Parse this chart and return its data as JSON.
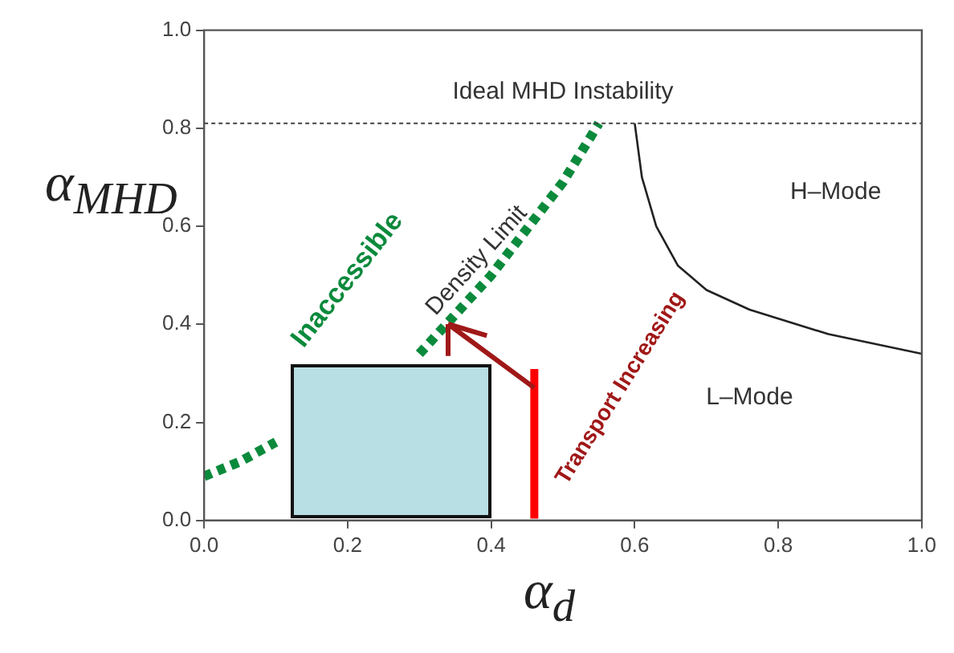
{
  "chart_data": {
    "type": "line",
    "xlabel": "α$_{d}$",
    "ylabel": "α$_{MHD}$",
    "xlim": [
      0,
      1
    ],
    "ylim": [
      0,
      1
    ],
    "xticks": [
      {
        "value": 0,
        "label": "0.0"
      },
      {
        "value": 0.2,
        "label": "0.2"
      },
      {
        "value": 0.4,
        "label": "0.4"
      },
      {
        "value": 0.6,
        "label": "0.6"
      },
      {
        "value": 0.8,
        "label": "0.8"
      },
      {
        "value": 1,
        "label": "1.0"
      }
    ],
    "yticks": [
      {
        "value": 0,
        "label": "0.0"
      },
      {
        "value": 0.2,
        "label": "0.2"
      },
      {
        "value": 0.4,
        "label": "0.4"
      },
      {
        "value": 0.6,
        "label": "0.6"
      },
      {
        "value": 0.8,
        "label": "0.8"
      },
      {
        "value": 1,
        "label": "1.0"
      }
    ],
    "series": [
      {
        "color": "#0b8a3c",
        "line_style": "dotted",
        "x": [
          0,
          0.05,
          0.1,
          0.2,
          0.3,
          0.4,
          0.5,
          0.55
        ],
        "values": [
          0.09,
          0.12,
          0.16,
          null,
          0.34,
          0.5,
          0.69,
          0.81
        ]
      },
      {
        "color": "#222222",
        "line_style": "solid",
        "x": [
          0.6,
          0.61,
          0.63,
          0.66,
          0.7,
          0.76,
          0.87,
          1.0
        ],
        "values": [
          0.81,
          0.7,
          0.6,
          0.52,
          0.47,
          0.43,
          0.38,
          0.34
        ]
      }
    ],
    "ref_lines": [
      {
        "axis": "y",
        "value": 0.81,
        "label": "Ideal MHD Instability",
        "color": "#444444",
        "line_style": "dotted"
      }
    ],
    "annotations": [
      "Inaccessible",
      "Density Limit",
      {
        "text": "Transport Increasing",
        "x": 0.34,
        "y": 0.4
      },
      "H–Mode",
      "L–Mode"
    ],
    "marker": "none",
    "grid": false,
    "legend": false
  }
}
